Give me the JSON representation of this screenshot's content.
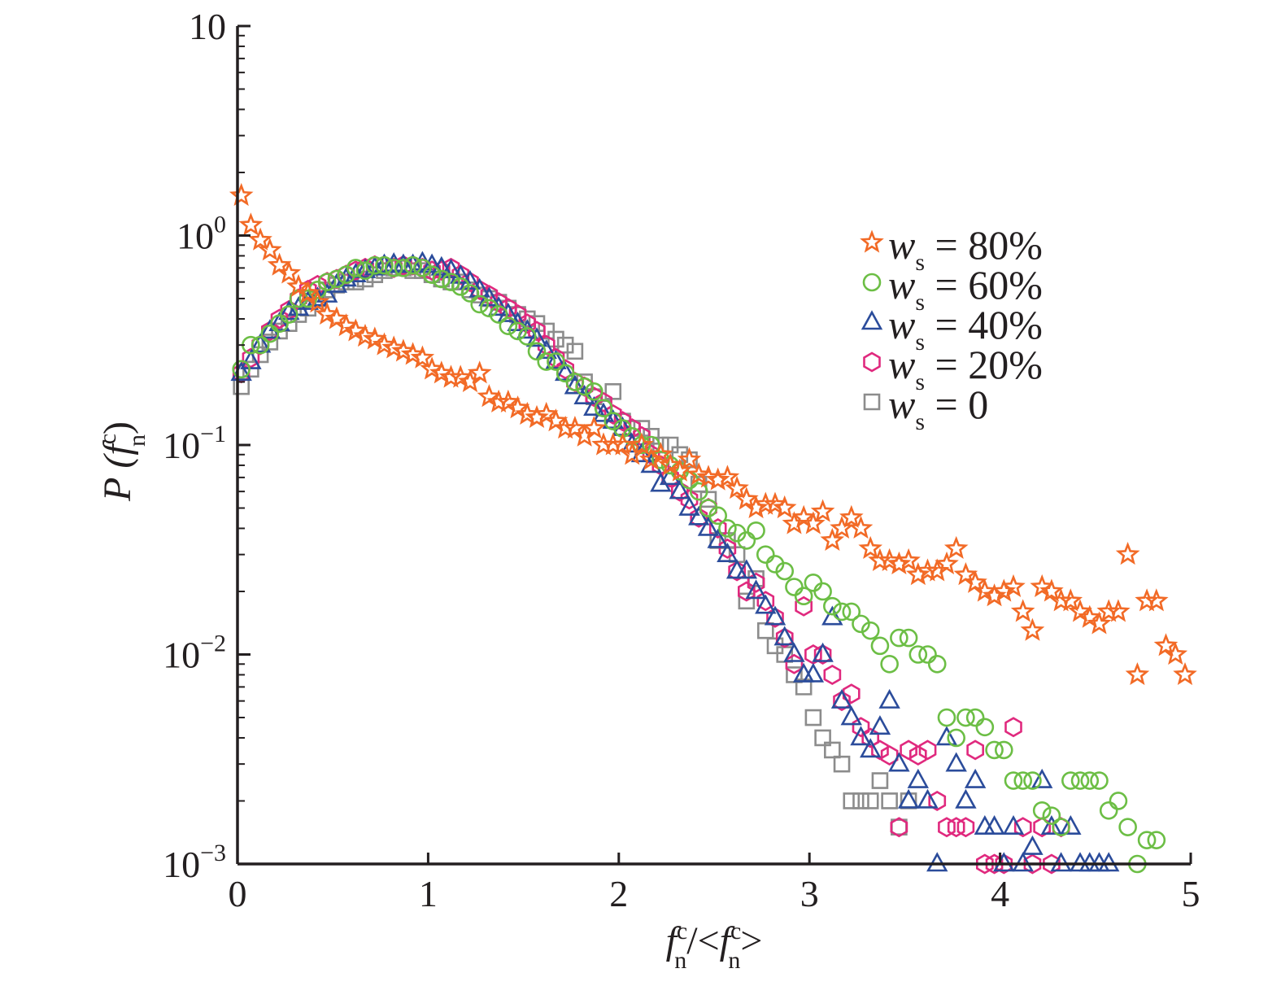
{
  "chart_data": {
    "type": "scatter",
    "xlabel": {
      "base": "f",
      "sub": "n",
      "sup": "c",
      "mid": "/<",
      "base2": "f",
      "sub2": "n",
      "sup2": "c",
      "end": ">"
    },
    "ylabel": {
      "prefix": "P (",
      "base": "f",
      "sub": "n",
      "sup": "c",
      "suffix": ")"
    },
    "xlim": [
      0,
      5
    ],
    "ylim": [
      0.001,
      10
    ],
    "yscale": "log",
    "grid": false,
    "legend_position": "top-right",
    "x_ticks": [
      {
        "value": 0,
        "label": "0"
      },
      {
        "value": 1,
        "label": "1"
      },
      {
        "value": 2,
        "label": "2"
      },
      {
        "value": 3,
        "label": "3"
      },
      {
        "value": 4,
        "label": "4"
      },
      {
        "value": 5,
        "label": "5"
      }
    ],
    "y_ticks": [
      {
        "value": 10,
        "base": "10",
        "exp": ""
      },
      {
        "value": 1,
        "base": "10",
        "exp": "0"
      },
      {
        "value": 0.1,
        "base": "10",
        "exp": "−1"
      },
      {
        "value": 0.01,
        "base": "10",
        "exp": "−2"
      },
      {
        "value": 0.001,
        "base": "10",
        "exp": "−3"
      }
    ],
    "series": [
      {
        "legend_var": "w",
        "legend_sub": "s",
        "legend_value": "= 80%",
        "marker": "star",
        "color": "#f26a26",
        "x": [
          0.02,
          0.07,
          0.12,
          0.17,
          0.22,
          0.27,
          0.32,
          0.37,
          0.42,
          0.47,
          0.52,
          0.57,
          0.62,
          0.67,
          0.72,
          0.77,
          0.82,
          0.87,
          0.92,
          0.97,
          1.02,
          1.07,
          1.12,
          1.17,
          1.22,
          1.27,
          1.32,
          1.37,
          1.42,
          1.47,
          1.52,
          1.57,
          1.62,
          1.67,
          1.72,
          1.77,
          1.82,
          1.87,
          1.92,
          1.97,
          2.02,
          2.07,
          2.12,
          2.17,
          2.22,
          2.27,
          2.32,
          2.37,
          2.42,
          2.47,
          2.52,
          2.57,
          2.62,
          2.67,
          2.72,
          2.77,
          2.82,
          2.87,
          2.92,
          2.97,
          3.02,
          3.07,
          3.12,
          3.17,
          3.22,
          3.27,
          3.32,
          3.37,
          3.42,
          3.47,
          3.52,
          3.57,
          3.62,
          3.67,
          3.72,
          3.77,
          3.82,
          3.87,
          3.92,
          3.97,
          4.02,
          4.07,
          4.12,
          4.17,
          4.22,
          4.27,
          4.32,
          4.37,
          4.42,
          4.47,
          4.52,
          4.57,
          4.62,
          4.67,
          4.72,
          4.77,
          4.82,
          4.87,
          4.92,
          4.97
        ],
        "y": [
          1.55,
          1.12,
          0.95,
          0.85,
          0.72,
          0.66,
          0.57,
          0.53,
          0.48,
          0.42,
          0.4,
          0.37,
          0.35,
          0.33,
          0.32,
          0.3,
          0.29,
          0.28,
          0.27,
          0.26,
          0.23,
          0.22,
          0.21,
          0.21,
          0.2,
          0.22,
          0.17,
          0.16,
          0.16,
          0.15,
          0.14,
          0.135,
          0.14,
          0.13,
          0.12,
          0.12,
          0.11,
          0.12,
          0.1,
          0.1,
          0.1,
          0.09,
          0.1,
          0.085,
          0.09,
          0.08,
          0.075,
          0.085,
          0.072,
          0.07,
          0.068,
          0.07,
          0.062,
          0.055,
          0.05,
          0.052,
          0.052,
          0.05,
          0.042,
          0.045,
          0.042,
          0.048,
          0.035,
          0.04,
          0.045,
          0.04,
          0.032,
          0.028,
          0.028,
          0.027,
          0.028,
          0.024,
          0.025,
          0.025,
          0.027,
          0.032,
          0.024,
          0.022,
          0.02,
          0.019,
          0.02,
          0.021,
          0.016,
          0.013,
          0.021,
          0.02,
          0.018,
          0.018,
          0.016,
          0.015,
          0.014,
          0.016,
          0.016,
          0.03,
          0.008,
          0.018,
          0.018,
          0.011,
          0.01,
          0.008
        ]
      },
      {
        "legend_var": "w",
        "legend_sub": "s",
        "legend_value": "= 60%",
        "marker": "circle",
        "color": "#6cbe45",
        "x": [
          0.02,
          0.07,
          0.12,
          0.17,
          0.22,
          0.27,
          0.32,
          0.37,
          0.42,
          0.47,
          0.52,
          0.57,
          0.62,
          0.67,
          0.72,
          0.77,
          0.82,
          0.87,
          0.92,
          0.97,
          1.02,
          1.07,
          1.12,
          1.17,
          1.22,
          1.27,
          1.32,
          1.37,
          1.42,
          1.47,
          1.52,
          1.57,
          1.62,
          1.67,
          1.72,
          1.77,
          1.82,
          1.87,
          1.92,
          1.97,
          2.02,
          2.07,
          2.12,
          2.17,
          2.22,
          2.27,
          2.32,
          2.37,
          2.42,
          2.47,
          2.52,
          2.57,
          2.62,
          2.67,
          2.72,
          2.77,
          2.82,
          2.87,
          2.92,
          2.97,
          3.02,
          3.07,
          3.12,
          3.17,
          3.22,
          3.27,
          3.32,
          3.37,
          3.42,
          3.47,
          3.52,
          3.57,
          3.62,
          3.67,
          3.72,
          3.77,
          3.82,
          3.87,
          3.92,
          3.97,
          4.02,
          4.07,
          4.12,
          4.17,
          4.22,
          4.27,
          4.32,
          4.37,
          4.42,
          4.47,
          4.52,
          4.57,
          4.62,
          4.67,
          4.72,
          4.77,
          4.82
        ],
        "y": [
          0.23,
          0.3,
          0.3,
          0.34,
          0.38,
          0.42,
          0.5,
          0.5,
          0.55,
          0.6,
          0.62,
          0.65,
          0.7,
          0.68,
          0.72,
          0.72,
          0.7,
          0.7,
          0.72,
          0.7,
          0.65,
          0.62,
          0.6,
          0.57,
          0.53,
          0.47,
          0.45,
          0.42,
          0.37,
          0.35,
          0.33,
          0.28,
          0.25,
          0.25,
          0.22,
          0.2,
          0.19,
          0.18,
          0.15,
          0.13,
          0.12,
          0.11,
          0.1,
          0.1,
          0.085,
          0.08,
          0.075,
          0.068,
          0.06,
          0.05,
          0.046,
          0.04,
          0.038,
          0.035,
          0.039,
          0.03,
          0.027,
          0.025,
          0.021,
          0.019,
          0.022,
          0.02,
          0.017,
          0.016,
          0.016,
          0.014,
          0.013,
          0.011,
          0.009,
          0.012,
          0.012,
          0.01,
          0.01,
          0.009,
          0.005,
          0.004,
          0.005,
          0.005,
          0.0045,
          0.0035,
          0.0035,
          0.0025,
          0.0025,
          0.0025,
          0.0018,
          0.0017,
          0.0015,
          0.0025,
          0.0025,
          0.0025,
          0.0025,
          0.0018,
          0.002,
          0.0015,
          0.001,
          0.0013,
          0.0013
        ]
      },
      {
        "legend_var": "w",
        "legend_sub": "s",
        "legend_value": "= 40%",
        "marker": "triangle",
        "color": "#2b4c9b",
        "x": [
          0.02,
          0.07,
          0.12,
          0.17,
          0.22,
          0.27,
          0.32,
          0.37,
          0.42,
          0.47,
          0.52,
          0.57,
          0.62,
          0.67,
          0.72,
          0.77,
          0.82,
          0.87,
          0.92,
          0.97,
          1.02,
          1.07,
          1.12,
          1.17,
          1.22,
          1.27,
          1.32,
          1.37,
          1.42,
          1.47,
          1.52,
          1.57,
          1.62,
          1.67,
          1.72,
          1.77,
          1.82,
          1.87,
          1.92,
          1.97,
          2.02,
          2.07,
          2.12,
          2.17,
          2.22,
          2.27,
          2.32,
          2.37,
          2.42,
          2.47,
          2.52,
          2.57,
          2.62,
          2.67,
          2.72,
          2.77,
          2.82,
          2.87,
          2.92,
          2.97,
          3.02,
          3.07,
          3.12,
          3.17,
          3.22,
          3.27,
          3.32,
          3.37,
          3.42,
          3.47,
          3.52,
          3.57,
          3.62,
          3.67,
          3.72,
          3.77,
          3.82,
          3.87,
          3.92,
          3.97,
          4.02,
          4.07,
          4.12,
          4.17,
          4.22,
          4.27,
          4.32,
          4.37,
          4.42,
          4.47,
          4.52,
          4.57
        ],
        "y": [
          0.22,
          0.25,
          0.3,
          0.35,
          0.38,
          0.43,
          0.45,
          0.48,
          0.5,
          0.52,
          0.58,
          0.62,
          0.65,
          0.68,
          0.7,
          0.72,
          0.73,
          0.72,
          0.72,
          0.74,
          0.72,
          0.7,
          0.68,
          0.64,
          0.6,
          0.55,
          0.5,
          0.45,
          0.42,
          0.38,
          0.35,
          0.32,
          0.28,
          0.25,
          0.22,
          0.19,
          0.17,
          0.15,
          0.14,
          0.13,
          0.12,
          0.1,
          0.09,
          0.08,
          0.065,
          0.07,
          0.06,
          0.05,
          0.045,
          0.04,
          0.035,
          0.03,
          0.025,
          0.025,
          0.02,
          0.017,
          0.015,
          0.012,
          0.01,
          0.008,
          0.008,
          0.01,
          0.015,
          0.006,
          0.005,
          0.004,
          0.0035,
          0.0045,
          0.006,
          0.003,
          0.002,
          0.0025,
          0.002,
          0.001,
          0.004,
          0.003,
          0.002,
          0.0025,
          0.0015,
          0.0015,
          0.001,
          0.0015,
          0.001,
          0.0012,
          0.0025,
          0.0015,
          0.001,
          0.0015,
          0.001,
          0.001,
          0.001,
          0.001
        ]
      },
      {
        "legend_var": "w",
        "legend_sub": "s",
        "legend_value": "= 20%",
        "marker": "hexagon",
        "color": "#e0297e",
        "x": [
          0.02,
          0.07,
          0.12,
          0.17,
          0.22,
          0.27,
          0.32,
          0.37,
          0.42,
          0.47,
          0.52,
          0.57,
          0.62,
          0.67,
          0.72,
          0.77,
          0.82,
          0.87,
          0.92,
          0.97,
          1.02,
          1.07,
          1.12,
          1.17,
          1.22,
          1.27,
          1.32,
          1.37,
          1.42,
          1.47,
          1.52,
          1.57,
          1.62,
          1.67,
          1.72,
          1.77,
          1.82,
          1.87,
          1.92,
          1.97,
          2.02,
          2.07,
          2.12,
          2.17,
          2.22,
          2.27,
          2.32,
          2.37,
          2.42,
          2.47,
          2.52,
          2.57,
          2.62,
          2.67,
          2.72,
          2.77,
          2.82,
          2.87,
          2.92,
          2.97,
          3.02,
          3.07,
          3.12,
          3.17,
          3.22,
          3.27,
          3.32,
          3.37,
          3.42,
          3.47,
          3.52,
          3.57,
          3.62,
          3.67,
          3.72,
          3.77,
          3.82,
          3.87,
          3.92,
          3.97,
          4.02,
          4.07,
          4.12,
          4.17,
          4.22,
          4.27,
          4.32
        ],
        "y": [
          0.22,
          0.26,
          0.3,
          0.35,
          0.4,
          0.44,
          0.5,
          0.55,
          0.58,
          0.6,
          0.62,
          0.65,
          0.68,
          0.7,
          0.72,
          0.72,
          0.7,
          0.72,
          0.72,
          0.7,
          0.68,
          0.68,
          0.7,
          0.65,
          0.6,
          0.55,
          0.52,
          0.48,
          0.45,
          0.42,
          0.38,
          0.35,
          0.3,
          0.26,
          0.23,
          0.2,
          0.19,
          0.17,
          0.16,
          0.14,
          0.13,
          0.12,
          0.11,
          0.09,
          0.08,
          0.07,
          0.06,
          0.055,
          0.045,
          0.05,
          0.04,
          0.032,
          0.025,
          0.02,
          0.022,
          0.018,
          0.015,
          0.012,
          0.009,
          0.017,
          0.01,
          0.01,
          0.008,
          0.006,
          0.0065,
          0.0045,
          0.004,
          0.0035,
          0.0033,
          0.0015,
          0.0035,
          0.0033,
          0.0035,
          0.002,
          0.0015,
          0.0015,
          0.0015,
          0.0035,
          0.001,
          0.001,
          0.001,
          0.0045,
          0.0015,
          0.001,
          0.0015,
          0.001,
          0.0015
        ]
      },
      {
        "legend_var": "w",
        "legend_sub": "s",
        "legend_value": "= 0",
        "marker": "square",
        "color": "#8c8c8c",
        "x": [
          0.02,
          0.07,
          0.12,
          0.17,
          0.22,
          0.27,
          0.32,
          0.37,
          0.42,
          0.47,
          0.52,
          0.57,
          0.62,
          0.67,
          0.72,
          0.77,
          0.82,
          0.87,
          0.92,
          0.97,
          1.02,
          1.07,
          1.12,
          1.17,
          1.22,
          1.27,
          1.32,
          1.37,
          1.42,
          1.47,
          1.52,
          1.57,
          1.62,
          1.67,
          1.72,
          1.77,
          1.82,
          1.87,
          1.92,
          1.97,
          2.02,
          2.07,
          2.12,
          2.17,
          2.22,
          2.27,
          2.32,
          2.37,
          2.42,
          2.47,
          2.52,
          2.57,
          2.62,
          2.67,
          2.72,
          2.77,
          2.82,
          2.87,
          2.92,
          2.97,
          3.02,
          3.07,
          3.12,
          3.17,
          3.22,
          3.27,
          3.32,
          3.37,
          3.42,
          3.47,
          3.52
        ],
        "y": [
          0.19,
          0.23,
          0.27,
          0.31,
          0.35,
          0.38,
          0.42,
          0.45,
          0.5,
          0.55,
          0.58,
          0.6,
          0.6,
          0.62,
          0.65,
          0.68,
          0.7,
          0.7,
          0.68,
          0.68,
          0.65,
          0.62,
          0.6,
          0.6,
          0.55,
          0.52,
          0.5,
          0.48,
          0.45,
          0.42,
          0.4,
          0.38,
          0.35,
          0.32,
          0.3,
          0.28,
          0.2,
          0.17,
          0.15,
          0.18,
          0.13,
          0.12,
          0.12,
          0.11,
          0.1,
          0.1,
          0.09,
          0.085,
          0.065,
          0.055,
          0.035,
          0.035,
          0.03,
          0.018,
          0.023,
          0.013,
          0.011,
          0.01,
          0.008,
          0.007,
          0.005,
          0.004,
          0.0035,
          0.003,
          0.002,
          0.002,
          0.002,
          0.0025,
          0.002,
          0.0015,
          0.002
        ]
      }
    ]
  }
}
